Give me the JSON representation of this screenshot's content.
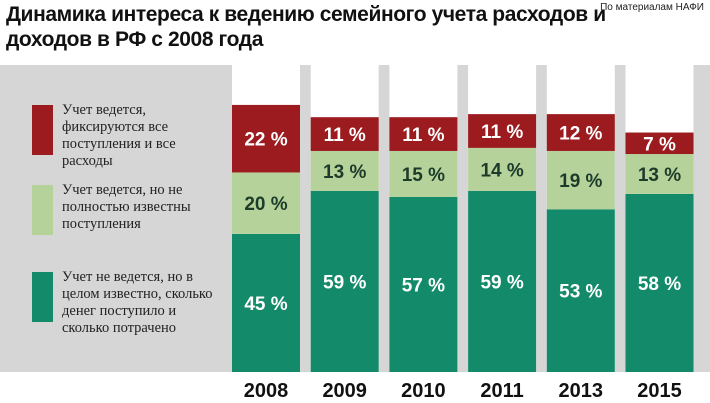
{
  "chart_data": {
    "type": "stacked_bar",
    "title": "Динамика интереса к ведению семейного учета расходов и доходов в РФ с 2008 года",
    "source": "По материалам НАФИ",
    "categories": [
      "2008",
      "2009",
      "2010",
      "2011",
      "2013",
      "2015"
    ],
    "ylim": [
      0,
      100
    ],
    "series": [
      {
        "name": "Учет не ведется, но в целом известно, сколько денег поступило и сколько потрачено",
        "color": "#138a6a",
        "values": [
          45,
          59,
          57,
          59,
          53,
          58
        ],
        "value_labels": [
          "45 %",
          "59 %",
          "57 %",
          "59 %",
          "53 %",
          "58 %"
        ]
      },
      {
        "name": "Учет ведется, но не полностью известны поступления",
        "color": "#b5d29b",
        "values": [
          20,
          13,
          15,
          14,
          19,
          13
        ],
        "value_labels": [
          "20 %",
          "13 %",
          "15 %",
          "14 %",
          "19 %",
          "13 %"
        ]
      },
      {
        "name": "Учет ведется, фиксируются все поступления и все расходы",
        "color": "#9b1b1f",
        "values": [
          22,
          11,
          11,
          11,
          12,
          7
        ],
        "value_labels": [
          "22 %",
          "11 %",
          "11 %",
          "11 %",
          "12 %",
          "7 %"
        ]
      }
    ]
  }
}
